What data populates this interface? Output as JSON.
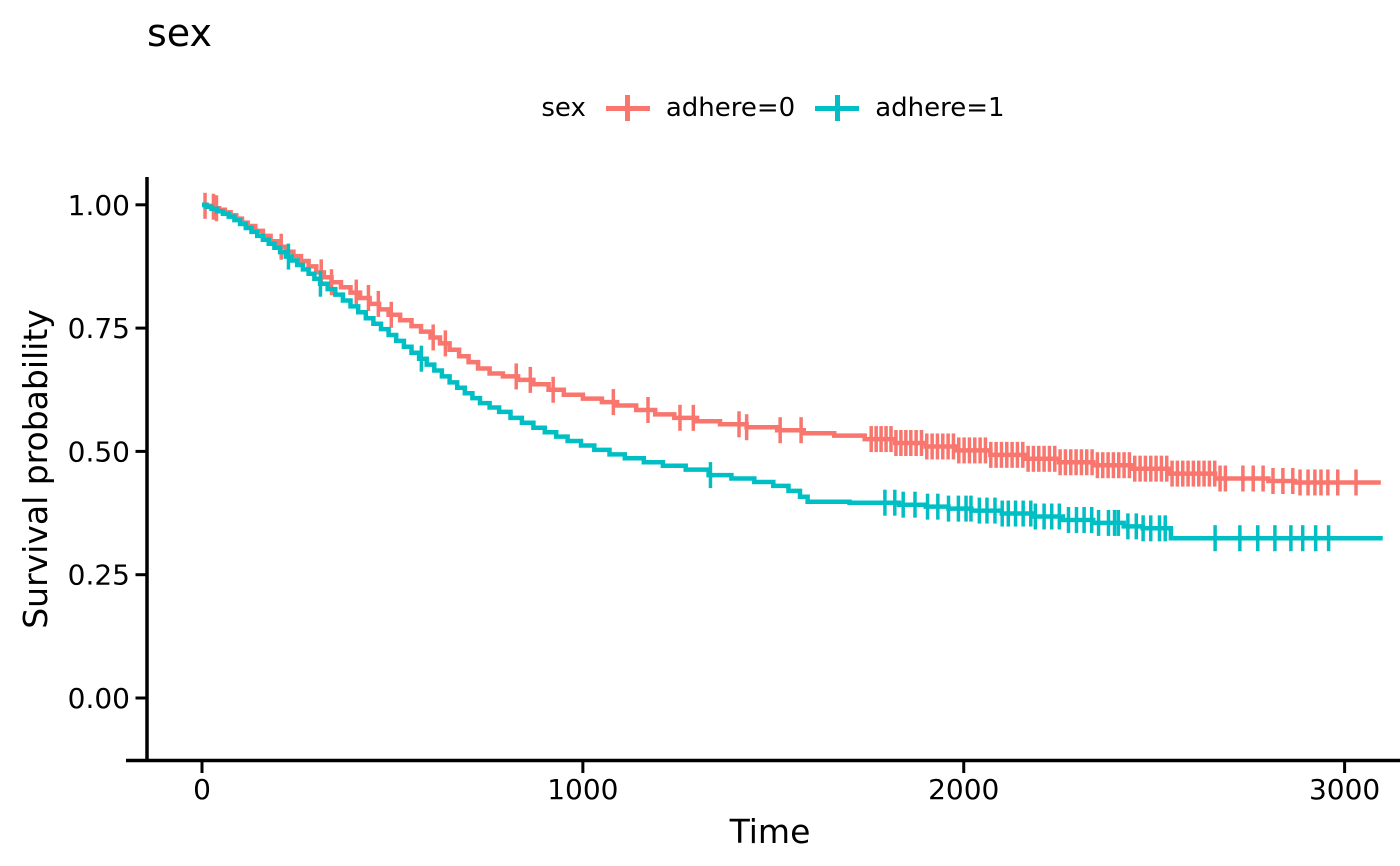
{
  "chart_data": {
    "type": "line",
    "subtype": "kaplan-meier-step-survival",
    "title": "sex",
    "xlabel": "Time",
    "ylabel": "Survival probability",
    "xlim": [
      0,
      3140
    ],
    "ylim": [
      0,
      1
    ],
    "grid": "off",
    "background": "#ffffff",
    "axis_color": "#000000",
    "x_ticks": [
      {
        "label": "0",
        "value": 0
      },
      {
        "label": "1000",
        "value": 1000
      },
      {
        "label": "2000",
        "value": 2000
      },
      {
        "label": "3000",
        "value": 3000
      }
    ],
    "y_ticks": [
      {
        "label": "0.00",
        "value": 0
      },
      {
        "label": "0.25",
        "value": 0.25
      },
      {
        "label": "0.50",
        "value": 0.5
      },
      {
        "label": "0.75",
        "value": 0.75
      },
      {
        "label": "1.00",
        "value": 1
      }
    ],
    "legend": {
      "title": "sex",
      "position": "top",
      "entries": [
        {
          "label": "adhere=0",
          "color": "#F8766D"
        },
        {
          "label": "adhere=1",
          "color": "#00BFC4"
        }
      ]
    },
    "series": [
      {
        "name": "adhere=0",
        "color": "#F8766D",
        "steps": [
          [
            0,
            1.0
          ],
          [
            8,
            0.998
          ],
          [
            20,
            0.996
          ],
          [
            32,
            0.993
          ],
          [
            45,
            0.99
          ],
          [
            60,
            0.985
          ],
          [
            75,
            0.979
          ],
          [
            90,
            0.972
          ],
          [
            105,
            0.964
          ],
          [
            120,
            0.957
          ],
          [
            140,
            0.947
          ],
          [
            160,
            0.937
          ],
          [
            180,
            0.926
          ],
          [
            200,
            0.915
          ],
          [
            220,
            0.905
          ],
          [
            240,
            0.896
          ],
          [
            260,
            0.886
          ],
          [
            280,
            0.875
          ],
          [
            300,
            0.863
          ],
          [
            320,
            0.853
          ],
          [
            340,
            0.843
          ],
          [
            365,
            0.833
          ],
          [
            390,
            0.822
          ],
          [
            415,
            0.811
          ],
          [
            440,
            0.799
          ],
          [
            465,
            0.788
          ],
          [
            490,
            0.777
          ],
          [
            520,
            0.766
          ],
          [
            550,
            0.754
          ],
          [
            575,
            0.743
          ],
          [
            600,
            0.731
          ],
          [
            625,
            0.719
          ],
          [
            650,
            0.706
          ],
          [
            675,
            0.693
          ],
          [
            700,
            0.681
          ],
          [
            725,
            0.668
          ],
          [
            755,
            0.658
          ],
          [
            790,
            0.652
          ],
          [
            830,
            0.645
          ],
          [
            870,
            0.636
          ],
          [
            910,
            0.625
          ],
          [
            950,
            0.615
          ],
          [
            1000,
            0.607
          ],
          [
            1050,
            0.6
          ],
          [
            1090,
            0.593
          ],
          [
            1140,
            0.584
          ],
          [
            1190,
            0.575
          ],
          [
            1240,
            0.568
          ],
          [
            1300,
            0.561
          ],
          [
            1360,
            0.555
          ],
          [
            1430,
            0.549
          ],
          [
            1510,
            0.543
          ],
          [
            1580,
            0.537
          ],
          [
            1660,
            0.532
          ],
          [
            1740,
            0.525
          ],
          [
            1820,
            0.517
          ],
          [
            1900,
            0.51
          ],
          [
            1980,
            0.502
          ],
          [
            2070,
            0.493
          ],
          [
            2160,
            0.485
          ],
          [
            2250,
            0.478
          ],
          [
            2340,
            0.472
          ],
          [
            2440,
            0.465
          ],
          [
            2540,
            0.455
          ],
          [
            2660,
            0.445
          ],
          [
            2800,
            0.44
          ],
          [
            2870,
            0.437
          ],
          [
            3095,
            0.437
          ]
        ],
        "censor_times": [
          8,
          30,
          38,
          208,
          313,
          340,
          405,
          437,
          463,
          497,
          607,
          639,
          825,
          862,
          922,
          1080,
          1171,
          1255,
          1290,
          1410,
          1430,
          1518,
          1573,
          1757,
          1770,
          1783,
          1796,
          1809,
          1822,
          1835,
          1848,
          1861,
          1875,
          1889,
          1903,
          1917,
          1931,
          1945,
          1959,
          1973,
          1987,
          2001,
          2015,
          2029,
          2043,
          2057,
          2071,
          2085,
          2099,
          2113,
          2127,
          2141,
          2155,
          2169,
          2183,
          2197,
          2211,
          2225,
          2239,
          2253,
          2267,
          2281,
          2295,
          2309,
          2323,
          2337,
          2351,
          2365,
          2379,
          2393,
          2407,
          2421,
          2435,
          2449,
          2463,
          2477,
          2491,
          2505,
          2519,
          2533,
          2547,
          2561,
          2575,
          2589,
          2603,
          2617,
          2631,
          2645,
          2659,
          2673,
          2687,
          2733,
          2760,
          2786,
          2812,
          2838,
          2864,
          2883,
          2904,
          2922,
          2938,
          2956,
          2982,
          3030
        ]
      },
      {
        "name": "adhere=1",
        "color": "#00BFC4",
        "steps": [
          [
            0,
            1.0
          ],
          [
            12,
            0.996
          ],
          [
            25,
            0.992
          ],
          [
            40,
            0.987
          ],
          [
            55,
            0.982
          ],
          [
            70,
            0.976
          ],
          [
            85,
            0.969
          ],
          [
            100,
            0.961
          ],
          [
            115,
            0.953
          ],
          [
            130,
            0.945
          ],
          [
            145,
            0.937
          ],
          [
            160,
            0.929
          ],
          [
            175,
            0.921
          ],
          [
            190,
            0.913
          ],
          [
            205,
            0.904
          ],
          [
            220,
            0.895
          ],
          [
            235,
            0.887
          ],
          [
            250,
            0.878
          ],
          [
            265,
            0.869
          ],
          [
            280,
            0.86
          ],
          [
            295,
            0.85
          ],
          [
            310,
            0.84
          ],
          [
            330,
            0.829
          ],
          [
            350,
            0.818
          ],
          [
            370,
            0.806
          ],
          [
            390,
            0.794
          ],
          [
            410,
            0.782
          ],
          [
            430,
            0.77
          ],
          [
            450,
            0.759
          ],
          [
            470,
            0.748
          ],
          [
            490,
            0.736
          ],
          [
            510,
            0.724
          ],
          [
            530,
            0.712
          ],
          [
            550,
            0.7
          ],
          [
            570,
            0.688
          ],
          [
            590,
            0.676
          ],
          [
            610,
            0.664
          ],
          [
            630,
            0.652
          ],
          [
            650,
            0.64
          ],
          [
            670,
            0.629
          ],
          [
            690,
            0.618
          ],
          [
            710,
            0.608
          ],
          [
            730,
            0.598
          ],
          [
            755,
            0.589
          ],
          [
            780,
            0.58
          ],
          [
            810,
            0.568
          ],
          [
            840,
            0.558
          ],
          [
            870,
            0.548
          ],
          [
            900,
            0.539
          ],
          [
            930,
            0.53
          ],
          [
            960,
            0.521
          ],
          [
            995,
            0.512
          ],
          [
            1030,
            0.503
          ],
          [
            1070,
            0.494
          ],
          [
            1110,
            0.486
          ],
          [
            1160,
            0.478
          ],
          [
            1210,
            0.471
          ],
          [
            1270,
            0.463
          ],
          [
            1330,
            0.452
          ],
          [
            1390,
            0.445
          ],
          [
            1450,
            0.438
          ],
          [
            1500,
            0.43
          ],
          [
            1540,
            0.42
          ],
          [
            1570,
            0.408
          ],
          [
            1590,
            0.398
          ],
          [
            1700,
            0.396
          ],
          [
            1830,
            0.392
          ],
          [
            1900,
            0.388
          ],
          [
            1960,
            0.384
          ],
          [
            2020,
            0.38
          ],
          [
            2100,
            0.374
          ],
          [
            2180,
            0.368
          ],
          [
            2260,
            0.361
          ],
          [
            2340,
            0.355
          ],
          [
            2420,
            0.348
          ],
          [
            2470,
            0.344
          ],
          [
            2544,
            0.324
          ],
          [
            3100,
            0.324
          ]
        ],
        "censor_times": [
          227,
          311,
          576,
          1335,
          1793,
          1819,
          1841,
          1872,
          1905,
          1932,
          1960,
          1986,
          2006,
          2019,
          2041,
          2061,
          2082,
          2101,
          2117,
          2136,
          2156,
          2176,
          2188,
          2211,
          2231,
          2251,
          2275,
          2296,
          2316,
          2336,
          2354,
          2380,
          2396,
          2406,
          2431,
          2453,
          2471,
          2491,
          2514,
          2529,
          2660,
          2725,
          2772,
          2817,
          2859,
          2890,
          2924,
          2958
        ]
      }
    ]
  }
}
